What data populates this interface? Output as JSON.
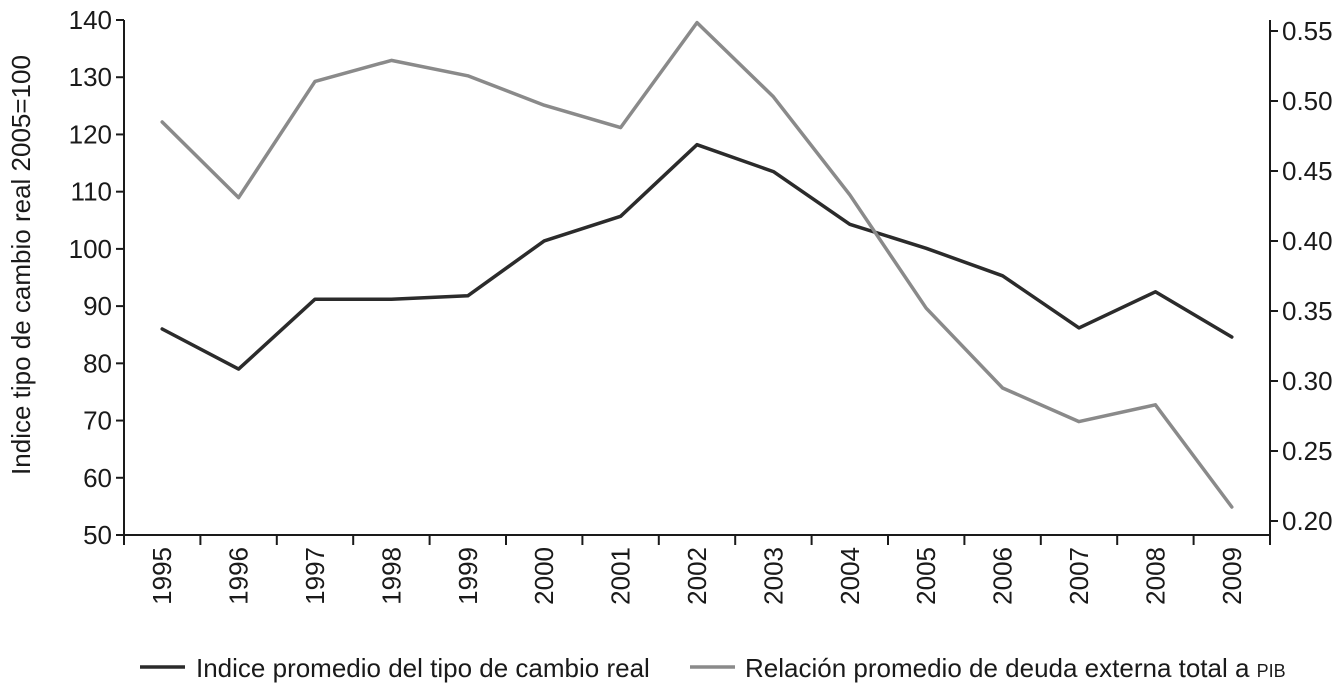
{
  "chart_data": {
    "type": "line",
    "title": "",
    "xlabel": "",
    "ylabel": "Indice tipo de cambio real 2005=100",
    "y2label": "",
    "categories": [
      "1995",
      "1996",
      "1997",
      "1998",
      "1999",
      "2000",
      "2001",
      "2002",
      "2003",
      "2004",
      "2005",
      "2006",
      "2007",
      "2008",
      "2009"
    ],
    "ylim": [
      50,
      140
    ],
    "yticks": [
      "50",
      "60",
      "70",
      "80",
      "90",
      "100",
      "110",
      "120",
      "130",
      "140"
    ],
    "y2lim": [
      0.2,
      0.55
    ],
    "y2ticks": [
      "0.20",
      "0.25",
      "0.30",
      "0.35",
      "0.40",
      "0.45",
      "0.50",
      "0.55"
    ],
    "grid": false,
    "legend_position": "bottom",
    "series": [
      {
        "name": "Indice promedio del tipo de cambio real",
        "axis": "left",
        "color": "#2b2b2b",
        "values": [
          86,
          79,
          91.2,
          91.2,
          91.8,
          101.4,
          105.7,
          118.2,
          113.5,
          104.3,
          100.1,
          95.3,
          86.2,
          92.5,
          84.6
        ]
      },
      {
        "name": "Relación promedio de deuda externa total a PIB",
        "legend_main": "Relación promedio de deuda externa total a ",
        "legend_suffix": "PIB",
        "axis": "right",
        "color": "#8a8a8a",
        "values": [
          0.485,
          0.431,
          0.514,
          0.529,
          0.518,
          0.497,
          0.481,
          0.556,
          0.503,
          0.433,
          0.352,
          0.295,
          0.271,
          0.283,
          0.21
        ]
      }
    ]
  }
}
